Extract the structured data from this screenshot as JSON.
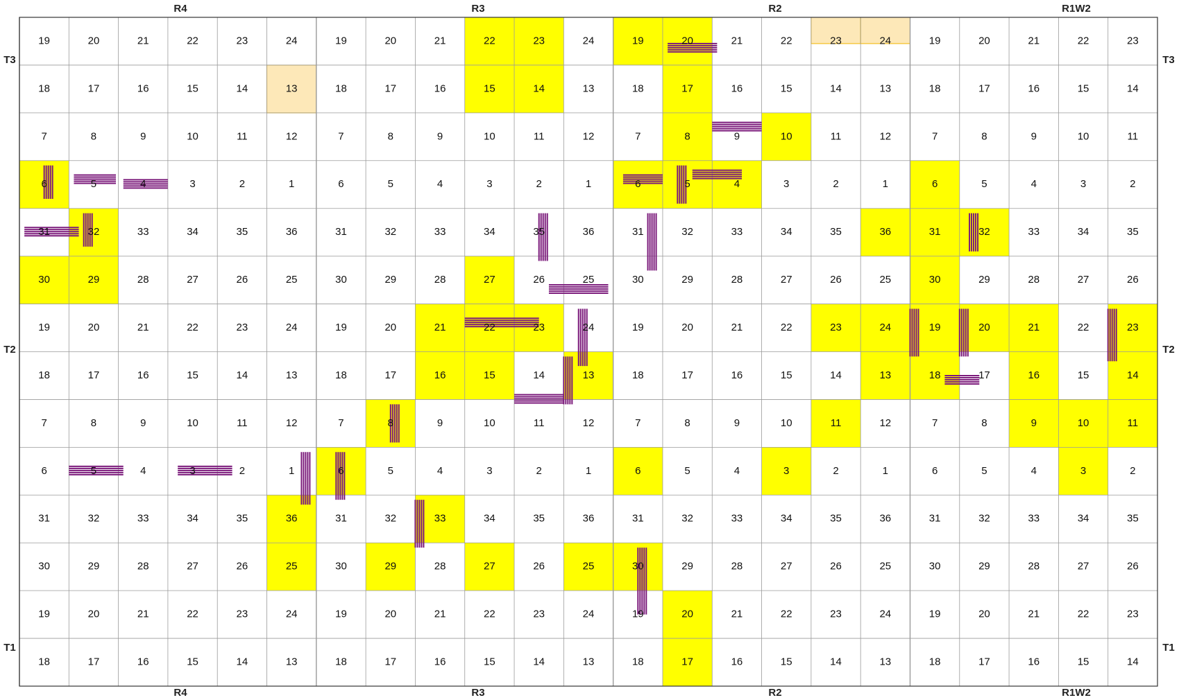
{
  "top_labels": [
    "R4",
    "R3",
    "R2",
    "R1W2"
  ],
  "bottom_labels": [
    "R4",
    "R3",
    "R2",
    "R1W2"
  ],
  "left_labels": [
    "T3",
    "T2",
    "T1"
  ],
  "right_labels": [
    "T3",
    "T2",
    "T1"
  ],
  "sections": [
    [
      19,
      20,
      21,
      22,
      23,
      24,
      19,
      20,
      21,
      22,
      23,
      24,
      19,
      20,
      21,
      22,
      23,
      24,
      19,
      20,
      21,
      22,
      23
    ],
    [
      18,
      17,
      16,
      15,
      14,
      13,
      18,
      17,
      16,
      15,
      14,
      13,
      18,
      17,
      16,
      15,
      14,
      13,
      18,
      17,
      16,
      15,
      14
    ],
    [
      7,
      8,
      9,
      10,
      11,
      12,
      7,
      8,
      9,
      10,
      11,
      12,
      7,
      8,
      9,
      10,
      11,
      12,
      7,
      8,
      9,
      10,
      11
    ],
    [
      6,
      5,
      4,
      3,
      2,
      1,
      6,
      5,
      4,
      3,
      2,
      1,
      6,
      5,
      4,
      3,
      2,
      1,
      6,
      5,
      4,
      3,
      2
    ],
    [
      31,
      32,
      33,
      34,
      35,
      36,
      31,
      32,
      33,
      34,
      35,
      36,
      31,
      32,
      33,
      34,
      35,
      36,
      31,
      32,
      33,
      34,
      35
    ],
    [
      30,
      29,
      28,
      27,
      26,
      25,
      30,
      29,
      28,
      27,
      26,
      25,
      30,
      29,
      28,
      27,
      26,
      25,
      30,
      29,
      28,
      27,
      26
    ],
    [
      19,
      20,
      21,
      22,
      23,
      24,
      19,
      20,
      21,
      22,
      23,
      24,
      19,
      20,
      21,
      22,
      23,
      24,
      19,
      20,
      21,
      22,
      23
    ],
    [
      18,
      17,
      16,
      15,
      14,
      13,
      18,
      17,
      16,
      15,
      14,
      13,
      18,
      17,
      16,
      15,
      14,
      13,
      18,
      17,
      16,
      15,
      14
    ],
    [
      7,
      8,
      9,
      10,
      11,
      12,
      7,
      8,
      9,
      10,
      11,
      12,
      7,
      8,
      9,
      10,
      11,
      12,
      7,
      8,
      9,
      10,
      11
    ],
    [
      6,
      5,
      4,
      3,
      2,
      1,
      6,
      5,
      4,
      3,
      2,
      1,
      6,
      5,
      4,
      3,
      2,
      1,
      6,
      5,
      4,
      3,
      2
    ],
    [
      31,
      32,
      33,
      34,
      35,
      36,
      31,
      32,
      33,
      34,
      35,
      36,
      31,
      32,
      33,
      34,
      35,
      36,
      31,
      32,
      33,
      34,
      35
    ],
    [
      30,
      29,
      28,
      27,
      26,
      25,
      30,
      29,
      28,
      27,
      26,
      25,
      30,
      29,
      28,
      27,
      26,
      25,
      30,
      29,
      28,
      27,
      26
    ],
    [
      19,
      20,
      21,
      22,
      23,
      24,
      19,
      20,
      21,
      22,
      23,
      24,
      19,
      20,
      21,
      22,
      23,
      24,
      19,
      20,
      21,
      22,
      23
    ],
    [
      18,
      17,
      16,
      15,
      14,
      13,
      18,
      17,
      16,
      15,
      14,
      13,
      18,
      17,
      16,
      15,
      14,
      13,
      18,
      17,
      16,
      15,
      14
    ]
  ]
}
